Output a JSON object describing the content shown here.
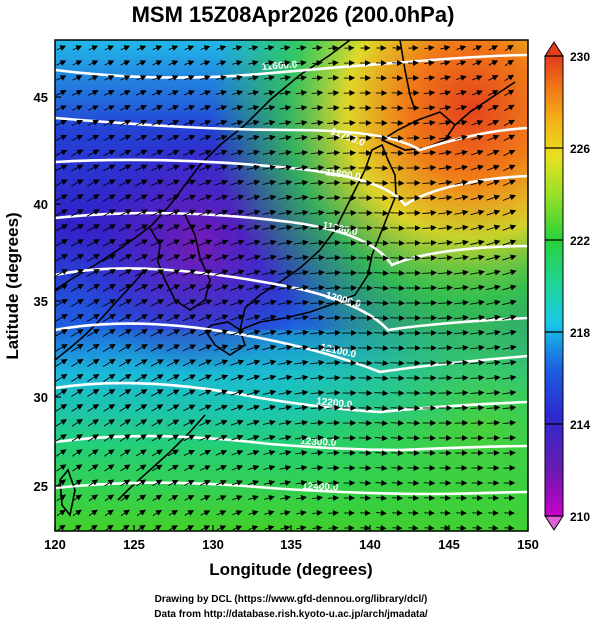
{
  "title": "MSM 15Z08Apr2026 (200.0hPa)",
  "xaxis": {
    "label": "Longitude (degrees)",
    "range": [
      120,
      150
    ],
    "ticks": [
      "120",
      "125",
      "130",
      "135",
      "140",
      "145",
      "150"
    ]
  },
  "yaxis": {
    "label": "Latitude  (degrees)",
    "range": [
      22.5,
      48
    ],
    "ticks": [
      "25",
      "30",
      "35",
      "40",
      "45"
    ]
  },
  "colorbar": {
    "range": [
      210,
      230
    ],
    "ticks": [
      "230",
      "226",
      "222",
      "218",
      "214",
      "210"
    ],
    "stops": [
      "#c800c8",
      "#6a1bb0",
      "#2a2bd0",
      "#1c5fe0",
      "#18c8e6",
      "#20d49a",
      "#28d23a",
      "#9be028",
      "#e8e020",
      "#f4b018",
      "#f07818",
      "#e43c1c"
    ]
  },
  "contour_labels": [
    "11600.0",
    "11700.0",
    "11800.0",
    "11900.0",
    "12000.0",
    "12100.0",
    "12200.0",
    "12300.0",
    "12400.0"
  ],
  "credit_line1": "Drawing by DCL (https://www.gfd-dennou.org/library/dcl/)",
  "credit_line2": "Data from http://database.rish.kyoto-u.ac.jp/arch/jmadata/",
  "chart_data": {
    "type": "heatmap",
    "title": "MSM 15Z08Apr2026 (200.0hPa)",
    "xlabel": "Longitude (degrees)",
    "ylabel": "Latitude  (degrees)",
    "xlim": [
      120,
      150
    ],
    "ylim": [
      22.5,
      48
    ],
    "colorbar_range": [
      210,
      230
    ],
    "overlays": [
      "geopotential height contours (white)",
      "wind vectors (black arrows)",
      "coastlines (black)"
    ],
    "contour_levels": [
      11600,
      11700,
      11800,
      11900,
      12000,
      12100,
      12200,
      12300,
      12400
    ]
  }
}
